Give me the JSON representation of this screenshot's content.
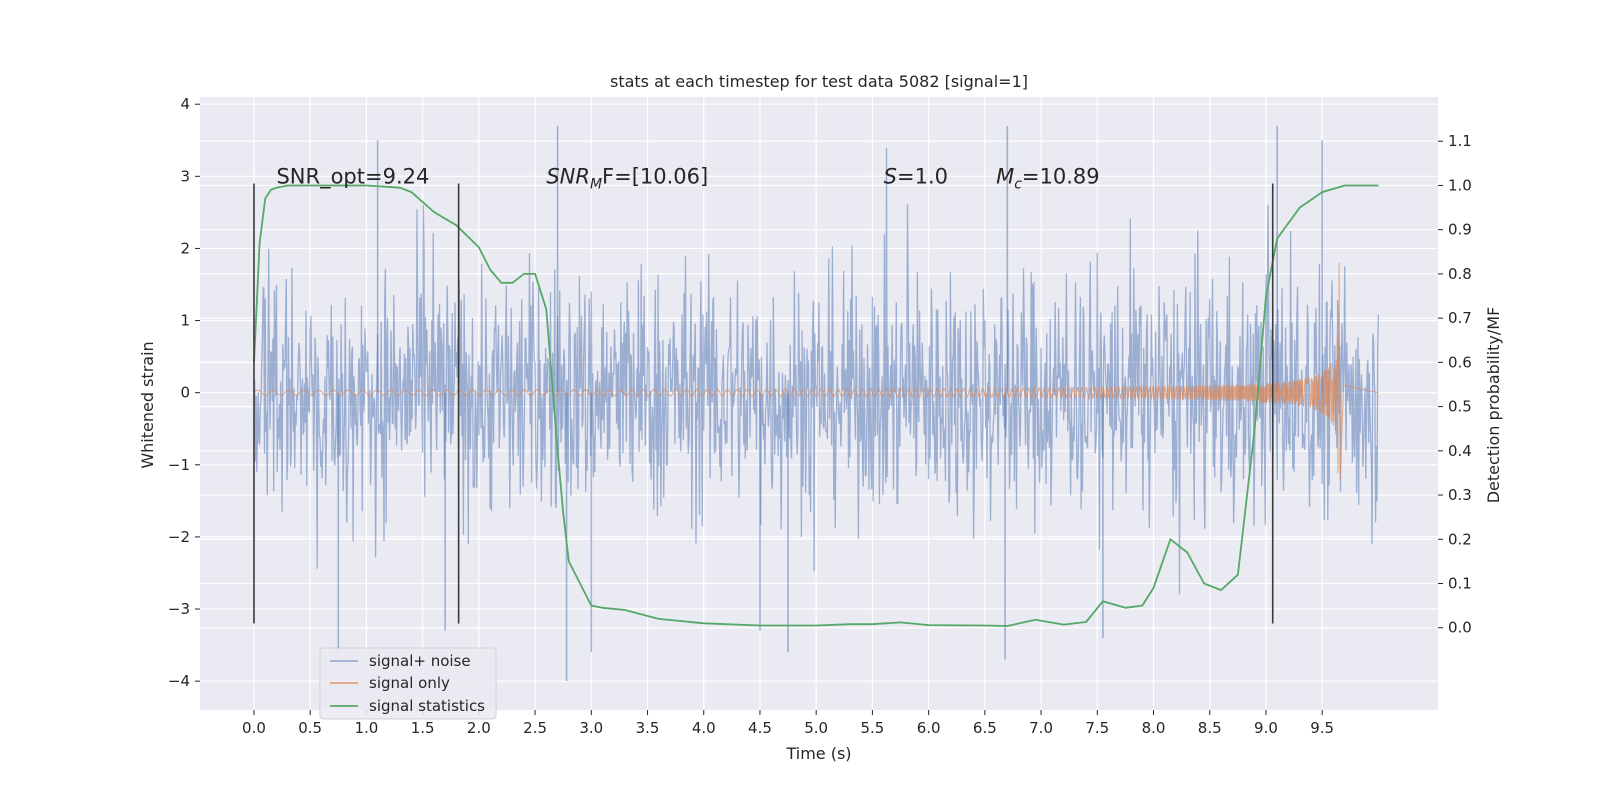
{
  "chart_data": {
    "type": "line",
    "title": "stats at each timestep for test data 5082 [signal=1]",
    "xlabel": "Time (s)",
    "ylabel": "Whitened strain",
    "y2label": "Detection probability/MF",
    "xlim": [
      -0.48,
      10.53
    ],
    "ylim": [
      -4.4,
      4.1
    ],
    "y2lim": [
      -0.186,
      1.2
    ],
    "xticks": [
      0.0,
      0.5,
      1.0,
      1.5,
      2.0,
      2.5,
      3.0,
      3.5,
      4.0,
      4.5,
      5.0,
      5.5,
      6.0,
      6.5,
      7.0,
      7.5,
      8.0,
      8.5,
      9.0,
      9.5
    ],
    "xtick_labels": [
      "0.0",
      "0.5",
      "1.0",
      "1.5",
      "2.0",
      "2.5",
      "3.0",
      "3.5",
      "4.0",
      "4.5",
      "5.0",
      "5.5",
      "6.0",
      "6.5",
      "7.0",
      "7.5",
      "8.0",
      "8.5",
      "9.0",
      "9.5"
    ],
    "yticks": [
      -4,
      -3,
      -2,
      -1,
      0,
      1,
      2,
      3,
      4
    ],
    "ytick_labels": [
      "−4",
      "−3",
      "−2",
      "−1",
      "0",
      "1",
      "2",
      "3",
      "4"
    ],
    "y2ticks": [
      0.0,
      0.1,
      0.2,
      0.3,
      0.4,
      0.5,
      0.6,
      0.7,
      0.8,
      0.9,
      1.0,
      1.1
    ],
    "y2tick_labels": [
      "0.0",
      "0.1",
      "0.2",
      "0.3",
      "0.4",
      "0.5",
      "0.6",
      "0.7",
      "0.8",
      "0.9",
      "1.0",
      "1.1"
    ],
    "grid": true,
    "legend_position": "lower-left",
    "annotations": [
      {
        "text": "SNR_opt=9.24",
        "x": 0.2,
        "y": 3.0
      },
      {
        "text_main": "SNR",
        "text_sub": "M",
        "text_rest": "F=[10.06]",
        "x": 2.6,
        "y": 3.0
      },
      {
        "text_main": "S",
        "text_rest": "=1.0",
        "x": 5.6,
        "y": 3.0
      },
      {
        "text_main": "M",
        "text_sub": "c",
        "text_rest": "=10.89",
        "x": 6.6,
        "y": 3.0
      }
    ],
    "vlines": [
      {
        "x": 0.0,
        "ymin": -3.2,
        "ymax": 2.9
      },
      {
        "x": 1.82,
        "ymin": -3.2,
        "ymax": 2.9
      },
      {
        "x": 9.06,
        "ymin": -3.2,
        "ymax": 2.9
      }
    ],
    "series": [
      {
        "name": "signal+ noise",
        "color": "#4c72b0",
        "opacity": 0.5,
        "t_start": 0.0,
        "t_end": 10.0,
        "envelope_typical": 1.6,
        "envelope_peak": 3.7,
        "spikes": [
          {
            "x": 0.75,
            "y": -3.6
          },
          {
            "x": 1.1,
            "y": 3.5
          },
          {
            "x": 1.7,
            "y": -3.3
          },
          {
            "x": 2.7,
            "y": 3.7
          },
          {
            "x": 2.78,
            "y": -4.0
          },
          {
            "x": 3.0,
            "y": -3.6
          },
          {
            "x": 4.5,
            "y": -3.3
          },
          {
            "x": 4.75,
            "y": -3.6
          },
          {
            "x": 6.7,
            "y": 3.7
          },
          {
            "x": 6.68,
            "y": -3.7
          },
          {
            "x": 7.55,
            "y": -3.4
          },
          {
            "x": 9.1,
            "y": 3.7
          },
          {
            "x": 9.5,
            "y": 3.5
          }
        ]
      },
      {
        "name": "signal only",
        "color": "#dd8452",
        "chirp_start": 0.0,
        "merger_time": 9.65,
        "peak_amplitude": 1.8,
        "ringdown_min": -1.2
      },
      {
        "name": "signal statistics",
        "color": "#55a868",
        "axis": "right",
        "x": [
          0.0,
          0.05,
          0.1,
          0.15,
          0.2,
          0.3,
          0.5,
          1.0,
          1.3,
          1.4,
          1.6,
          1.8,
          2.0,
          2.1,
          2.2,
          2.3,
          2.4,
          2.5,
          2.6,
          2.7,
          2.75,
          2.8,
          2.9,
          3.0,
          3.1,
          3.3,
          3.6,
          4.0,
          4.5,
          5.0,
          5.3,
          5.5,
          5.75,
          6.0,
          6.5,
          6.7,
          6.95,
          7.2,
          7.4,
          7.55,
          7.75,
          7.9,
          8.0,
          8.15,
          8.3,
          8.45,
          8.6,
          8.75,
          8.9,
          9.0,
          9.1,
          9.3,
          9.5,
          9.7,
          10.0
        ],
        "y": [
          0.6,
          0.87,
          0.97,
          0.99,
          0.995,
          1.0,
          1.0,
          1.0,
          0.995,
          0.985,
          0.94,
          0.91,
          0.86,
          0.81,
          0.78,
          0.78,
          0.8,
          0.8,
          0.72,
          0.4,
          0.26,
          0.15,
          0.1,
          0.05,
          0.045,
          0.04,
          0.02,
          0.01,
          0.005,
          0.005,
          0.008,
          0.008,
          0.012,
          0.006,
          0.005,
          0.004,
          0.018,
          0.007,
          0.013,
          0.06,
          0.045,
          0.05,
          0.09,
          0.2,
          0.17,
          0.1,
          0.085,
          0.12,
          0.45,
          0.75,
          0.88,
          0.95,
          0.985,
          1.0,
          1.0
        ]
      }
    ]
  }
}
